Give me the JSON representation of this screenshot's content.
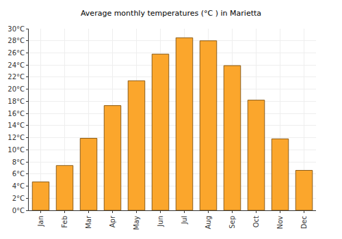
{
  "chart_data": {
    "type": "bar",
    "title": "Average monthly temperatures (°C ) in Marietta",
    "categories": [
      "Jan",
      "Feb",
      "Mar",
      "Apr",
      "May",
      "Jun",
      "Jul",
      "Aug",
      "Sep",
      "Oct",
      "Nov",
      "Dec"
    ],
    "values": [
      4.7,
      7.4,
      11.9,
      17.3,
      21.4,
      25.8,
      28.5,
      28.0,
      23.9,
      18.2,
      11.8,
      6.6
    ],
    "color": "#fba62c",
    "ylim": [
      0,
      30
    ],
    "yticks": [
      {
        "value": 0,
        "label": "0°C"
      },
      {
        "value": 2,
        "label": "2°C"
      },
      {
        "value": 4,
        "label": "4°C"
      },
      {
        "value": 6,
        "label": "6°C"
      },
      {
        "value": 8,
        "label": "8°C"
      },
      {
        "value": 10,
        "label": "10°C"
      },
      {
        "value": 12,
        "label": "12°C"
      },
      {
        "value": 14,
        "label": "14°C"
      },
      {
        "value": 16,
        "label": "16°C"
      },
      {
        "value": 18,
        "label": "18°C"
      },
      {
        "value": 20,
        "label": "20°C"
      },
      {
        "value": 22,
        "label": "22°C"
      },
      {
        "value": 24,
        "label": "24°C"
      },
      {
        "value": 26,
        "label": "26°C"
      },
      {
        "value": 28,
        "label": "28°C"
      },
      {
        "value": 30,
        "label": "30°C"
      }
    ],
    "grid": true
  }
}
